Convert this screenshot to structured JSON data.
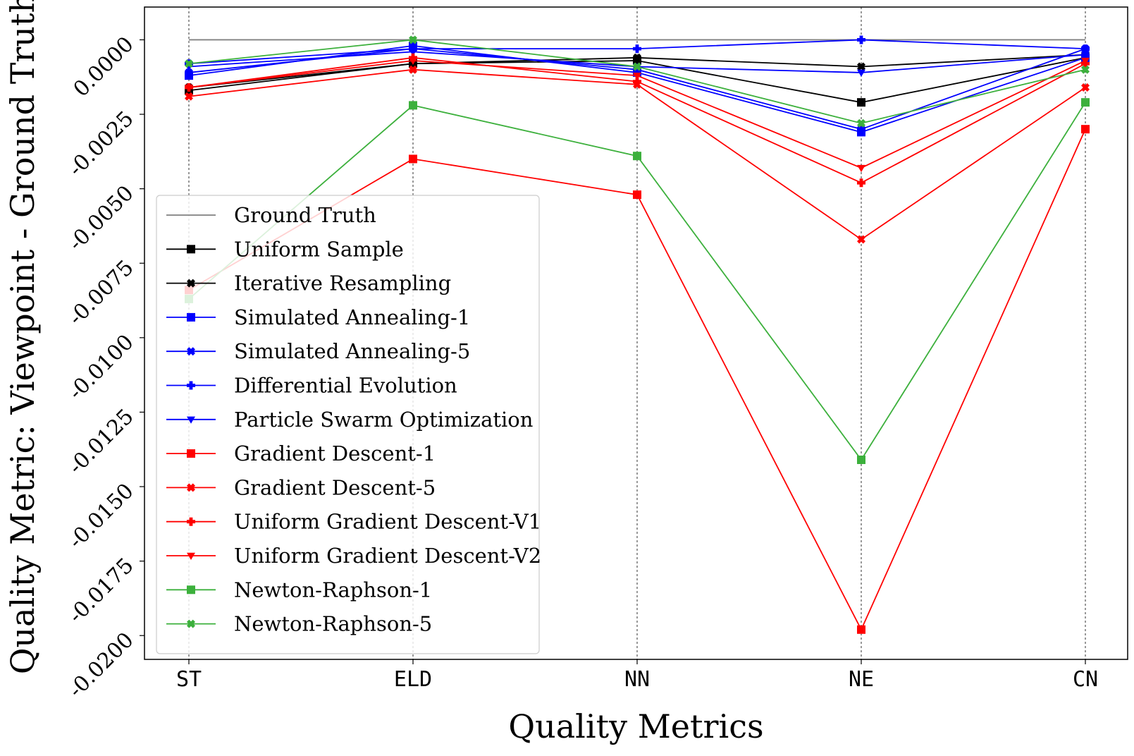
{
  "chart_data": {
    "type": "line",
    "title": "",
    "xlabel": "Quality Metrics",
    "ylabel": "Quality Metric: Viewpoint - Ground Truth",
    "categories": [
      "ST",
      "ELD",
      "NN",
      "NE",
      "CN"
    ],
    "ylim": [
      -0.0208,
      0.0011
    ],
    "yticks": [
      "0.0000",
      "-0.0025",
      "-0.0050",
      "-0.0075",
      "-0.0100",
      "-0.0125",
      "-0.0150",
      "-0.0175",
      "-0.0200"
    ],
    "grid": "vertical dashed lines at categories",
    "legend": "lower-left",
    "series": [
      {
        "name": "Ground Truth",
        "color": "#808080",
        "marker": "none",
        "values": [
          0,
          0,
          0,
          0,
          0
        ]
      },
      {
        "name": "Uniform Sample",
        "color": "#000000",
        "marker": "square",
        "values": [
          -0.0017,
          -0.0008,
          -0.0007,
          -0.0021,
          -0.0006
        ]
      },
      {
        "name": "Iterative Resampling",
        "color": "#000000",
        "marker": "x",
        "values": [
          -0.0016,
          -0.0008,
          -0.0006,
          -0.0009,
          -0.0005
        ]
      },
      {
        "name": "Simulated Annealing-1",
        "color": "#0000ff",
        "marker": "square",
        "values": [
          -0.0012,
          -0.0002,
          -0.0011,
          -0.0031,
          -0.0006
        ]
      },
      {
        "name": "Simulated Annealing-5",
        "color": "#0000ff",
        "marker": "x",
        "values": [
          -0.0011,
          -0.0003,
          -0.001,
          -0.003,
          -0.0003
        ]
      },
      {
        "name": "Differential Evolution",
        "color": "#0000ff",
        "marker": "plus",
        "values": [
          -0.0008,
          -0.0003,
          -0.0003,
          0.0,
          -0.0003
        ]
      },
      {
        "name": "Particle Swarm Optimization",
        "color": "#0000ff",
        "marker": "triangle",
        "values": [
          -0.0009,
          -0.0004,
          -0.0009,
          -0.0011,
          -0.0005
        ]
      },
      {
        "name": "Gradient Descent-1",
        "color": "#ff0000",
        "marker": "square",
        "values": [
          -0.0084,
          -0.004,
          -0.0052,
          -0.0198,
          -0.003
        ]
      },
      {
        "name": "Gradient Descent-5",
        "color": "#ff0000",
        "marker": "x",
        "values": [
          -0.0019,
          -0.001,
          -0.0015,
          -0.0067,
          -0.0016
        ]
      },
      {
        "name": "Uniform Gradient Descent-V1",
        "color": "#ff0000",
        "marker": "plus",
        "values": [
          -0.0016,
          -0.0006,
          -0.0014,
          -0.0048,
          -0.0008
        ]
      },
      {
        "name": "Uniform Gradient Descent-V2",
        "color": "#ff0000",
        "marker": "triangle",
        "values": [
          -0.0016,
          -0.0007,
          -0.0012,
          -0.0043,
          -0.0007
        ]
      },
      {
        "name": "Newton-Raphson-1",
        "color": "#3cb03c",
        "marker": "square",
        "values": [
          -0.0087,
          -0.0022,
          -0.0039,
          -0.0141,
          -0.0021
        ]
      },
      {
        "name": "Newton-Raphson-5",
        "color": "#3cb03c",
        "marker": "x",
        "values": [
          -0.0008,
          0.0,
          -0.0009,
          -0.0028,
          -0.001
        ]
      }
    ]
  }
}
